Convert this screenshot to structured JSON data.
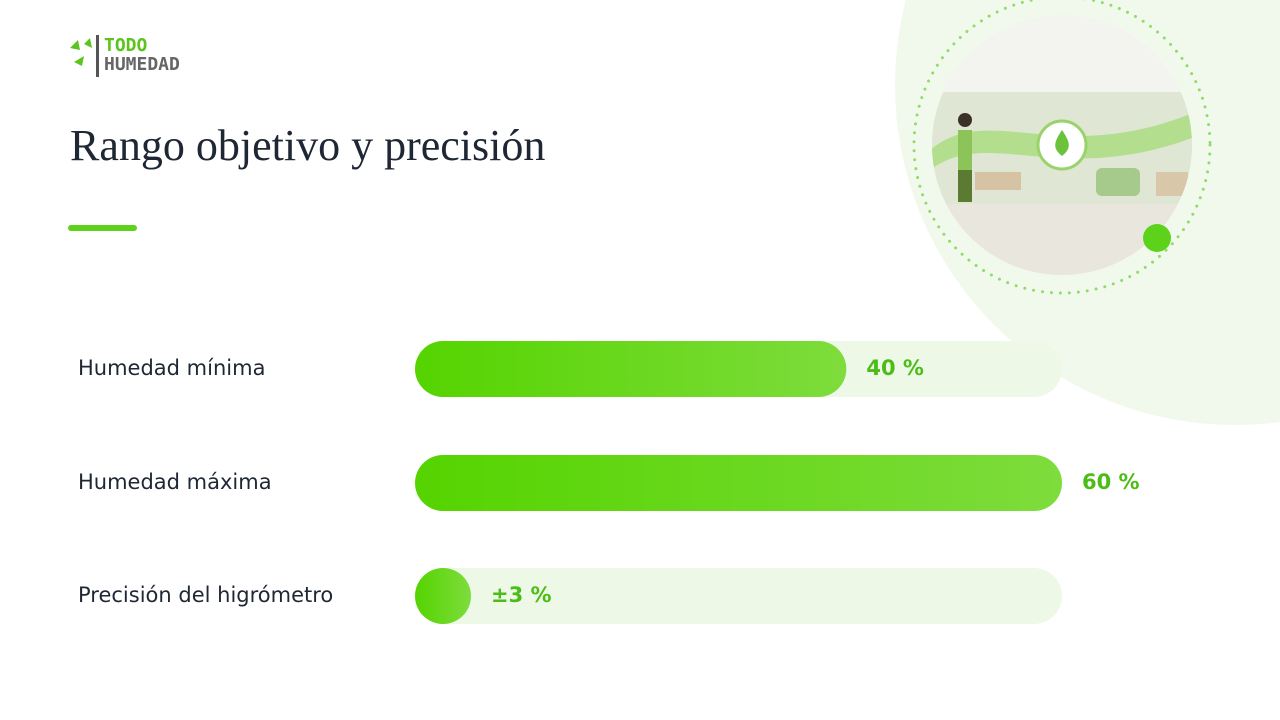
{
  "header": {
    "logo_top": "TODO",
    "logo_bottom": "HUMEDAD"
  },
  "chart_data": {
    "type": "hbar",
    "title": "Rango objetivo y precisión",
    "categories": [
      "Humedad mínima",
      "Humedad máxima",
      "Precisión del higrómetro"
    ],
    "values": [
      40,
      60,
      3
    ],
    "value_labels": [
      "40 %",
      "60 %",
      "±3 %"
    ],
    "xlim": [
      0,
      60
    ],
    "color": "#55d400"
  }
}
